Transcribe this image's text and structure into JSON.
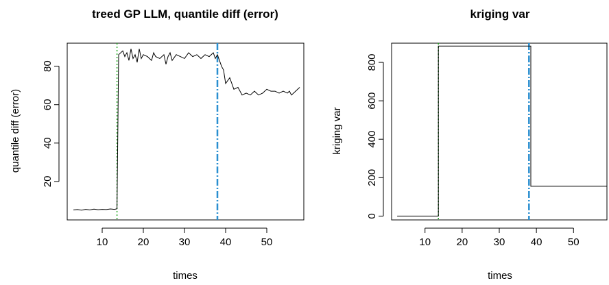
{
  "chart_data": [
    {
      "type": "line",
      "title": "treed GP LLM, quantile diff (error)",
      "xlabel": "times",
      "ylabel": "quantile diff (error)",
      "xlim": [
        1.5,
        59
      ],
      "ylim": [
        0,
        92
      ],
      "xticks": [
        10,
        20,
        30,
        40,
        50
      ],
      "yticks": [
        20,
        40,
        60,
        80
      ],
      "series": [
        {
          "x": [
            3,
            4,
            5,
            6,
            7,
            8,
            9,
            10,
            11,
            12,
            13,
            13.6,
            14,
            15,
            15.5,
            16,
            16.5,
            17,
            17.5,
            18,
            18.5,
            19,
            19.5,
            20,
            21,
            22,
            22.5,
            23,
            24,
            25,
            25.5,
            26,
            26.5,
            27,
            28,
            29,
            30,
            31,
            32,
            33,
            34,
            35,
            36,
            37,
            37.5,
            38,
            38.5,
            39,
            39.5,
            40,
            41,
            42,
            43,
            44,
            45,
            46,
            47,
            48,
            49,
            50,
            51,
            52,
            53,
            54,
            55,
            55.5,
            56,
            57,
            58
          ],
          "y": [
            5.2,
            5.4,
            5.1,
            5.5,
            5.2,
            5.6,
            5.3,
            5.5,
            5.4,
            5.7,
            5.5,
            5.8,
            86,
            88,
            85,
            87,
            83,
            89,
            84,
            86,
            82,
            89,
            84,
            86,
            85,
            83,
            87,
            85,
            84,
            86,
            81,
            85,
            87,
            83,
            86,
            85,
            84,
            87,
            85,
            86,
            84,
            86,
            85,
            87,
            84,
            86,
            83,
            80,
            78,
            71,
            74,
            68,
            69,
            65,
            66,
            65,
            67,
            65,
            66,
            68,
            67,
            67,
            66,
            67,
            66,
            67,
            65,
            67,
            69
          ]
        }
      ],
      "vlines": [
        {
          "x": 13.6,
          "color": "#22aa22",
          "style": "dotted"
        },
        {
          "x": 38,
          "color": "#2a8fd0",
          "style": "dashdot"
        }
      ]
    },
    {
      "type": "line",
      "title": "kriging var",
      "xlabel": "times",
      "ylabel": "kriging var",
      "xlim": [
        1,
        59
      ],
      "ylim": [
        -20,
        900
      ],
      "xticks": [
        10,
        20,
        30,
        40,
        50
      ],
      "yticks": [
        0,
        200,
        400,
        600,
        800
      ],
      "series": [
        {
          "x": [
            2.5,
            13.6,
            13.6,
            38.5,
            38.5,
            59
          ],
          "y": [
            0,
            0,
            885,
            885,
            155,
            155
          ]
        }
      ],
      "vlines": [
        {
          "x": 13.6,
          "color": "#22aa22",
          "style": "dotted"
        },
        {
          "x": 38,
          "color": "#2a8fd0",
          "style": "dashdot"
        }
      ]
    }
  ]
}
